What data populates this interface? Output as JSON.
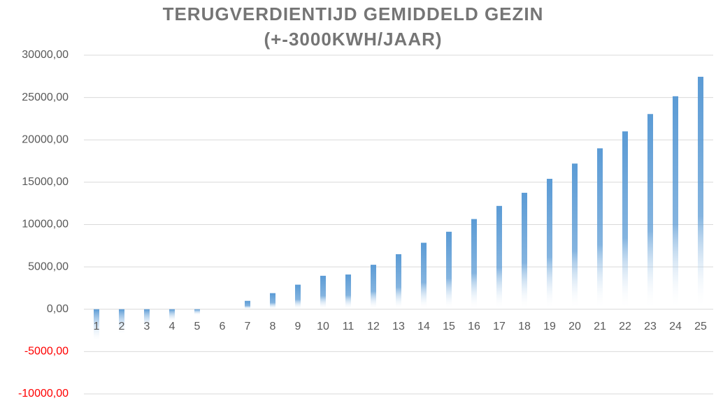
{
  "chart_data": {
    "type": "bar",
    "title": "TERUGVERDIENTIJD GEMIDDELD GEZIN",
    "subtitle": "(+-3000KWH/JAAR)",
    "categories": [
      "1",
      "2",
      "3",
      "4",
      "5",
      "6",
      "7",
      "8",
      "9",
      "10",
      "11",
      "12",
      "13",
      "14",
      "15",
      "16",
      "17",
      "18",
      "19",
      "20",
      "21",
      "22",
      "23",
      "24",
      "25"
    ],
    "values": [
      -3600,
      -2900,
      -2200,
      -1400,
      -650,
      0,
      990,
      1900,
      2900,
      3950,
      4100,
      5250,
      6500,
      7850,
      9150,
      10650,
      12200,
      13750,
      15400,
      17200,
      19000,
      21000,
      23050,
      25150,
      27450
    ],
    "color": "#5b9bd5",
    "negative_tick_color": "#ff0000",
    "ylim": [
      -10000,
      30000
    ],
    "yticks": [
      {
        "value": -10000,
        "label": "-10000,00"
      },
      {
        "value": -5000,
        "label": "-5000,00"
      },
      {
        "value": 0,
        "label": "0,00"
      },
      {
        "value": 5000,
        "label": "5000,00"
      },
      {
        "value": 10000,
        "label": "10000,00"
      },
      {
        "value": 15000,
        "label": "15000,00"
      },
      {
        "value": 20000,
        "label": "20000,00"
      },
      {
        "value": 25000,
        "label": "25000,00"
      },
      {
        "value": 30000,
        "label": "30000,00"
      }
    ],
    "grid": true
  }
}
